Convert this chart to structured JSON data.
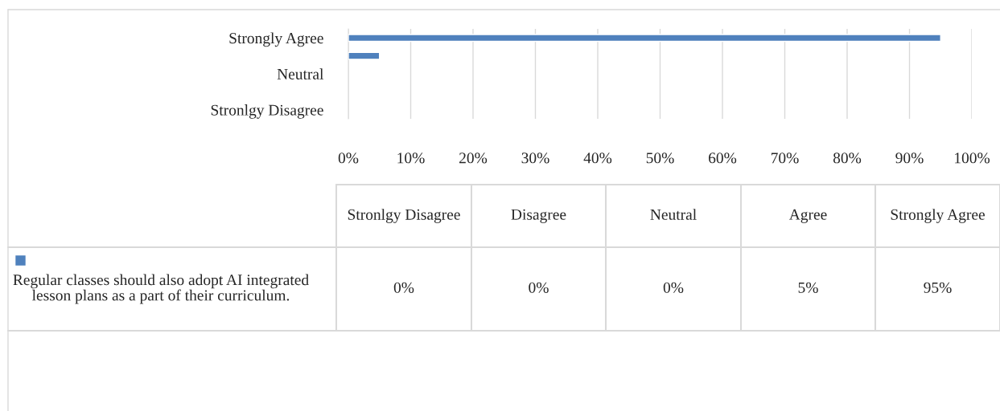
{
  "chart_data": {
    "type": "bar",
    "orientation": "horizontal",
    "categories": [
      "Strongly Agree",
      null,
      "Neutral",
      null,
      "Stronlgy Disagree"
    ],
    "annotations": [
      "Stronlgy Disagree",
      "Disagree",
      "Neutral",
      "Agree",
      "Strongly Agree"
    ],
    "series": [
      {
        "name": "Regular classes should also adopt AI integrated lesson plans as a part of their curriculum.",
        "color": "#4f81bd",
        "values": [
          95,
          5,
          0,
          0,
          0
        ]
      }
    ],
    "value_labels": [
      "95%",
      "5%",
      "0%",
      "0%",
      "0%"
    ],
    "xlim": [
      0,
      100
    ],
    "xticks": [
      {
        "value": 0,
        "label": "0%"
      },
      {
        "value": 10,
        "label": "10%"
      },
      {
        "value": 20,
        "label": "20%"
      },
      {
        "value": 30,
        "label": "30%"
      },
      {
        "value": 40,
        "label": "40%"
      },
      {
        "value": 50,
        "label": "50%"
      },
      {
        "value": 60,
        "label": "60%"
      },
      {
        "value": 70,
        "label": "70%"
      },
      {
        "value": 80,
        "label": "80%"
      },
      {
        "value": 90,
        "label": "90%"
      },
      {
        "value": 100,
        "label": "100%"
      }
    ],
    "grid": "x",
    "legend": "bottom"
  }
}
